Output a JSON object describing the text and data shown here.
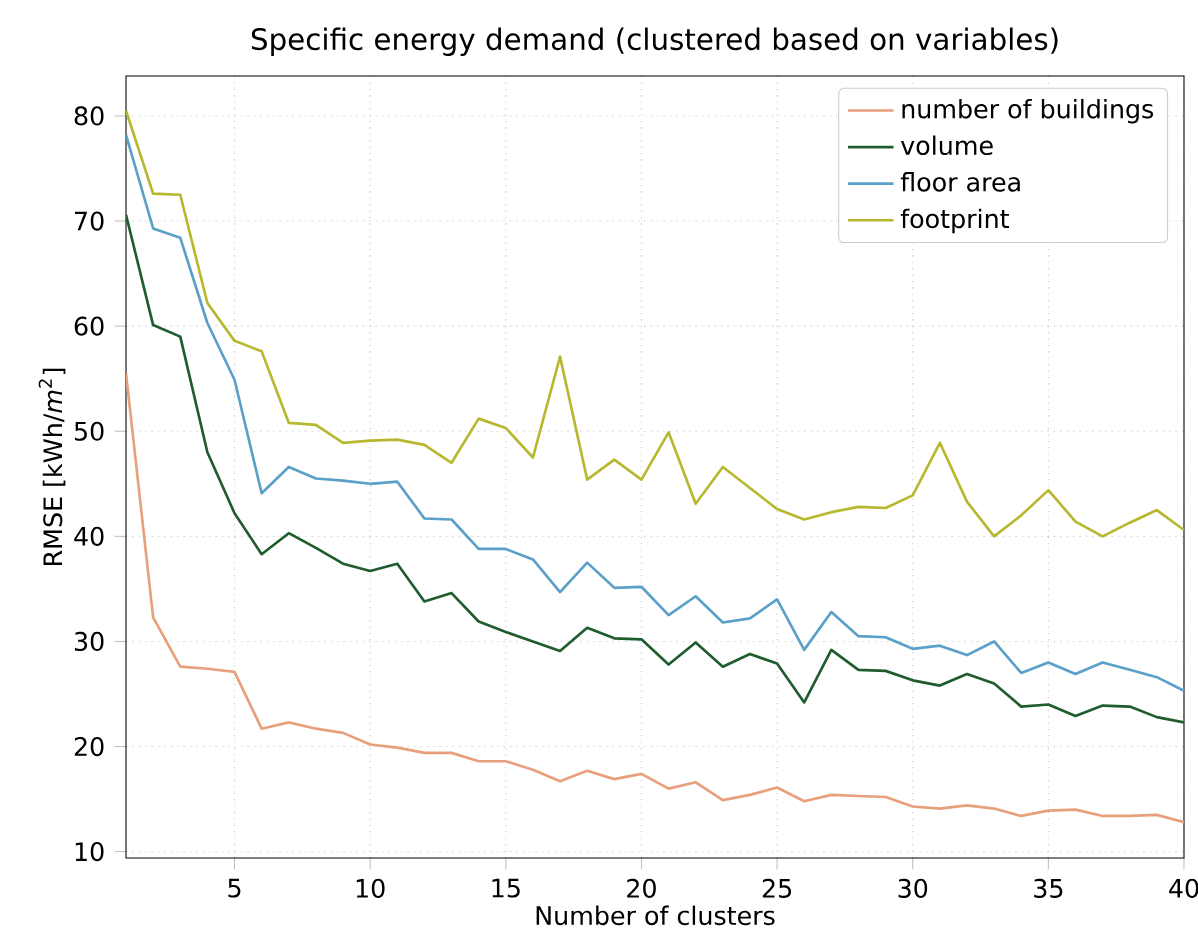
{
  "chart_data": {
    "type": "line",
    "title": "Specific energy demand (clustered based on variables)",
    "xlabel": "Number of clusters",
    "ylabel": "RMSE [kWh/*m*$^{2}$]",
    "x": [
      1,
      2,
      3,
      4,
      5,
      6,
      7,
      8,
      9,
      10,
      11,
      12,
      13,
      14,
      15,
      16,
      17,
      18,
      19,
      20,
      21,
      22,
      23,
      24,
      25,
      26,
      27,
      28,
      29,
      30,
      31,
      32,
      33,
      34,
      35,
      36,
      37,
      38,
      39,
      40
    ],
    "series": [
      {
        "name": "number of buildings",
        "color": "#e8a07c",
        "values": [
          55.5,
          32.3,
          27.6,
          27.4,
          27.1,
          21.7,
          22.3,
          21.7,
          21.3,
          20.2,
          19.9,
          19.4,
          19.4,
          18.6,
          18.6,
          17.8,
          16.7,
          17.7,
          16.9,
          17.4,
          16.0,
          16.6,
          14.9,
          15.4,
          16.1,
          14.8,
          15.4,
          15.3,
          15.2,
          14.3,
          14.1,
          14.4,
          14.1,
          13.4,
          13.9,
          14.0,
          13.4,
          13.4,
          13.5,
          12.8
        ]
      },
      {
        "name": "volume",
        "color": "#1f5c2e",
        "values": [
          70.6,
          60.1,
          59.0,
          48.0,
          42.2,
          38.3,
          40.3,
          38.9,
          37.4,
          36.7,
          37.4,
          33.8,
          34.6,
          31.9,
          30.9,
          30.0,
          29.1,
          31.3,
          30.3,
          30.2,
          27.8,
          29.9,
          27.6,
          28.8,
          27.9,
          24.2,
          29.2,
          27.3,
          27.2,
          26.3,
          25.8,
          26.9,
          26.0,
          23.8,
          24.0,
          22.9,
          23.9,
          23.8,
          22.8,
          22.3
        ]
      },
      {
        "name": "floor area",
        "color": "#5ba0c8",
        "values": [
          78.2,
          69.3,
          68.4,
          60.3,
          54.9,
          44.1,
          46.6,
          45.5,
          45.3,
          45.0,
          45.2,
          41.7,
          41.6,
          38.8,
          38.8,
          37.8,
          34.7,
          37.5,
          35.1,
          35.2,
          32.5,
          34.3,
          31.8,
          32.2,
          34.0,
          29.2,
          32.8,
          30.5,
          30.4,
          29.3,
          29.6,
          28.7,
          30.0,
          27.0,
          28.0,
          26.9,
          28.0,
          27.3,
          26.6,
          25.3
        ]
      },
      {
        "name": "footprint",
        "color": "#b8b830",
        "values": [
          80.5,
          72.6,
          72.5,
          62.2,
          58.6,
          57.6,
          50.8,
          50.6,
          48.9,
          49.1,
          49.2,
          48.7,
          47.0,
          51.2,
          50.3,
          47.5,
          57.1,
          45.4,
          47.3,
          45.4,
          49.9,
          43.1,
          46.6,
          44.6,
          42.6,
          41.6,
          42.3,
          42.8,
          42.7,
          43.9,
          48.9,
          43.3,
          40.0,
          42.0,
          44.4,
          41.4,
          40.0,
          41.3,
          42.5,
          40.6
        ]
      }
    ],
    "xlim": [
      1,
      40
    ],
    "ylim": [
      9.4,
      83.8
    ],
    "xticks": [
      5,
      10,
      15,
      20,
      25,
      30,
      35,
      40
    ],
    "yticks": [
      10,
      20,
      30,
      40,
      50,
      60,
      70,
      80
    ],
    "grid": true,
    "legend": "top right",
    "marker": "none",
    "line_style": "solid"
  }
}
